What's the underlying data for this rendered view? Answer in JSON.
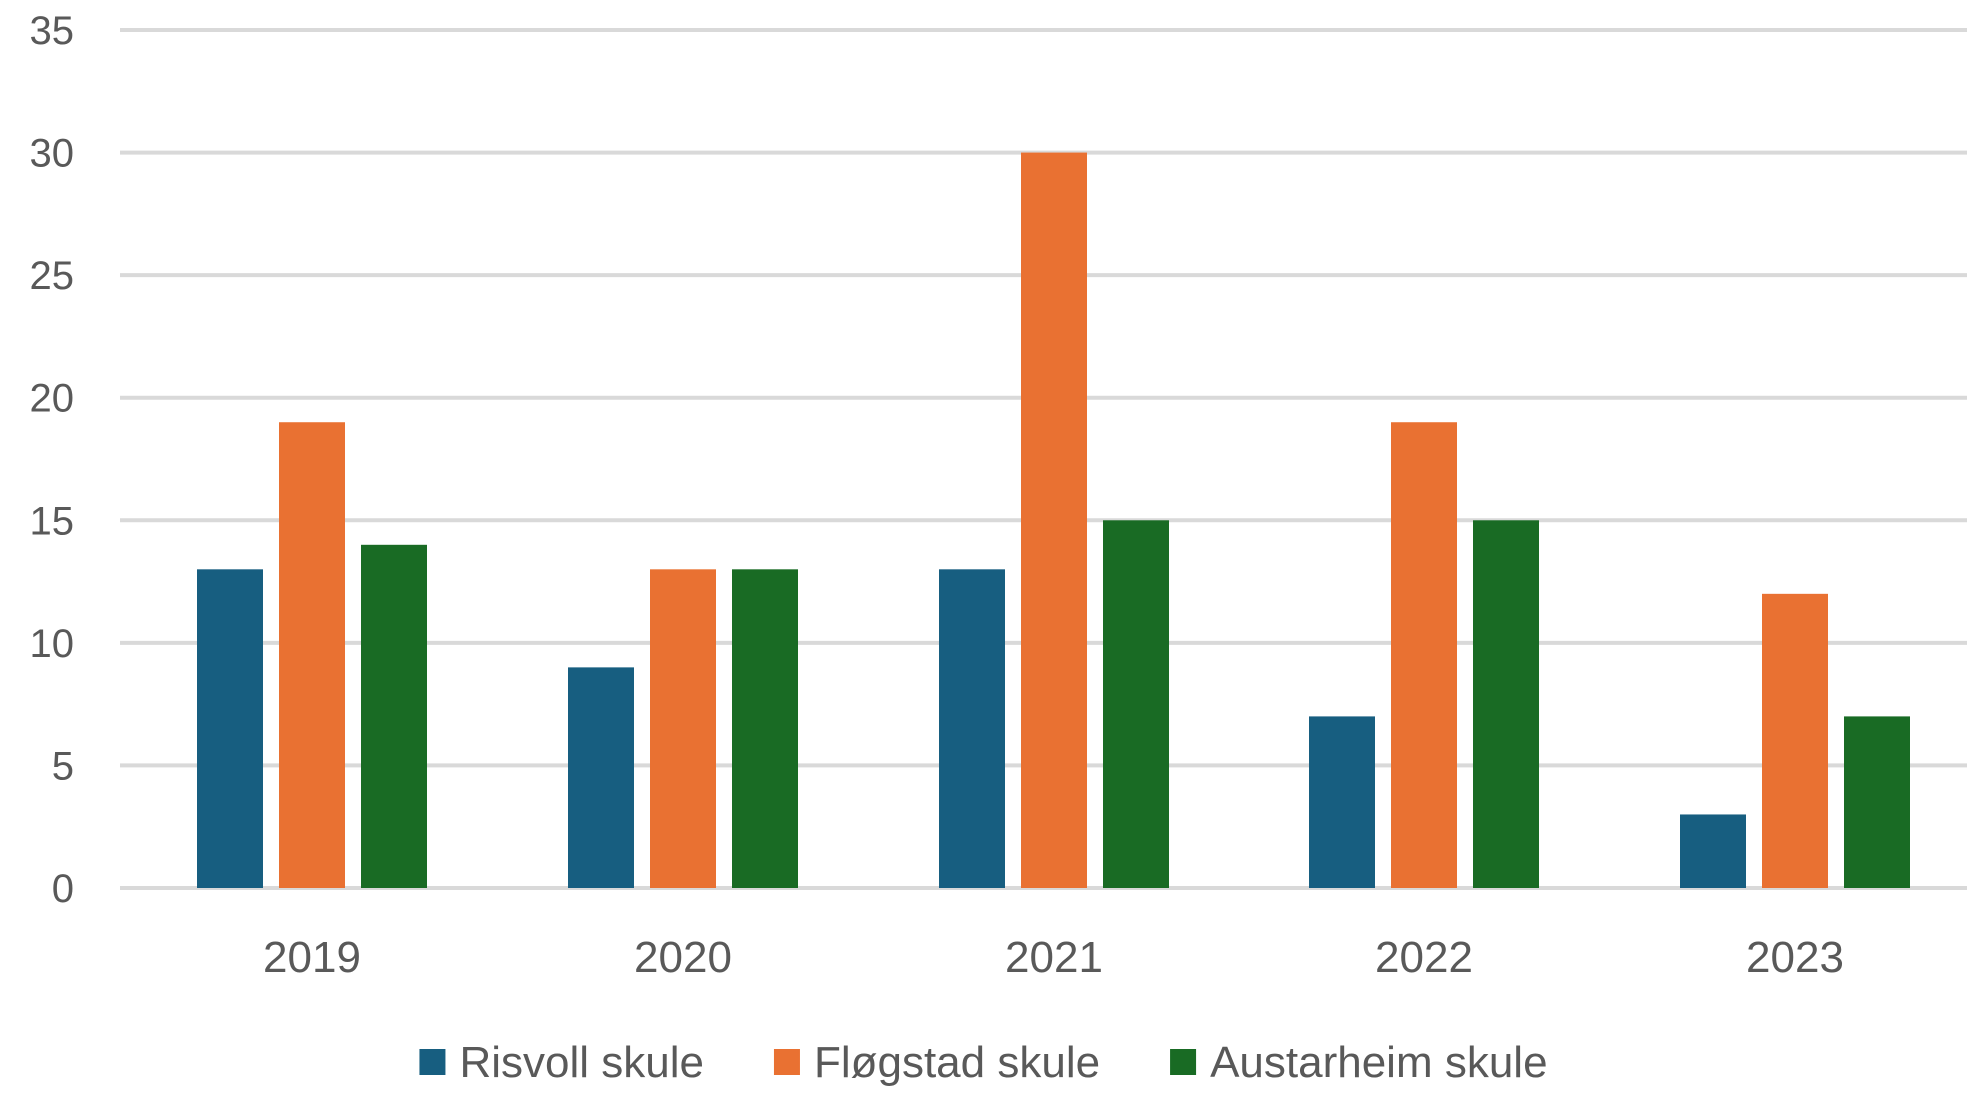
{
  "chart_data": {
    "type": "bar",
    "categories": [
      "2019",
      "2020",
      "2021",
      "2022",
      "2023"
    ],
    "series": [
      {
        "name": "Risvoll skule",
        "color": "#175e80",
        "values": [
          13,
          9,
          13,
          7,
          3
        ]
      },
      {
        "name": "Fløgstad skule",
        "color": "#e97132",
        "values": [
          19,
          13,
          30,
          19,
          12
        ]
      },
      {
        "name": "Austarheim skule",
        "color": "#196b24",
        "values": [
          14,
          13,
          15,
          15,
          7
        ]
      }
    ],
    "yticks": [
      "0",
      "5",
      "10",
      "15",
      "20",
      "25",
      "30",
      "35"
    ],
    "ylim": [
      0,
      35
    ],
    "grid": true,
    "legend_position": "bottom",
    "title": "",
    "xlabel": "",
    "ylabel": ""
  }
}
